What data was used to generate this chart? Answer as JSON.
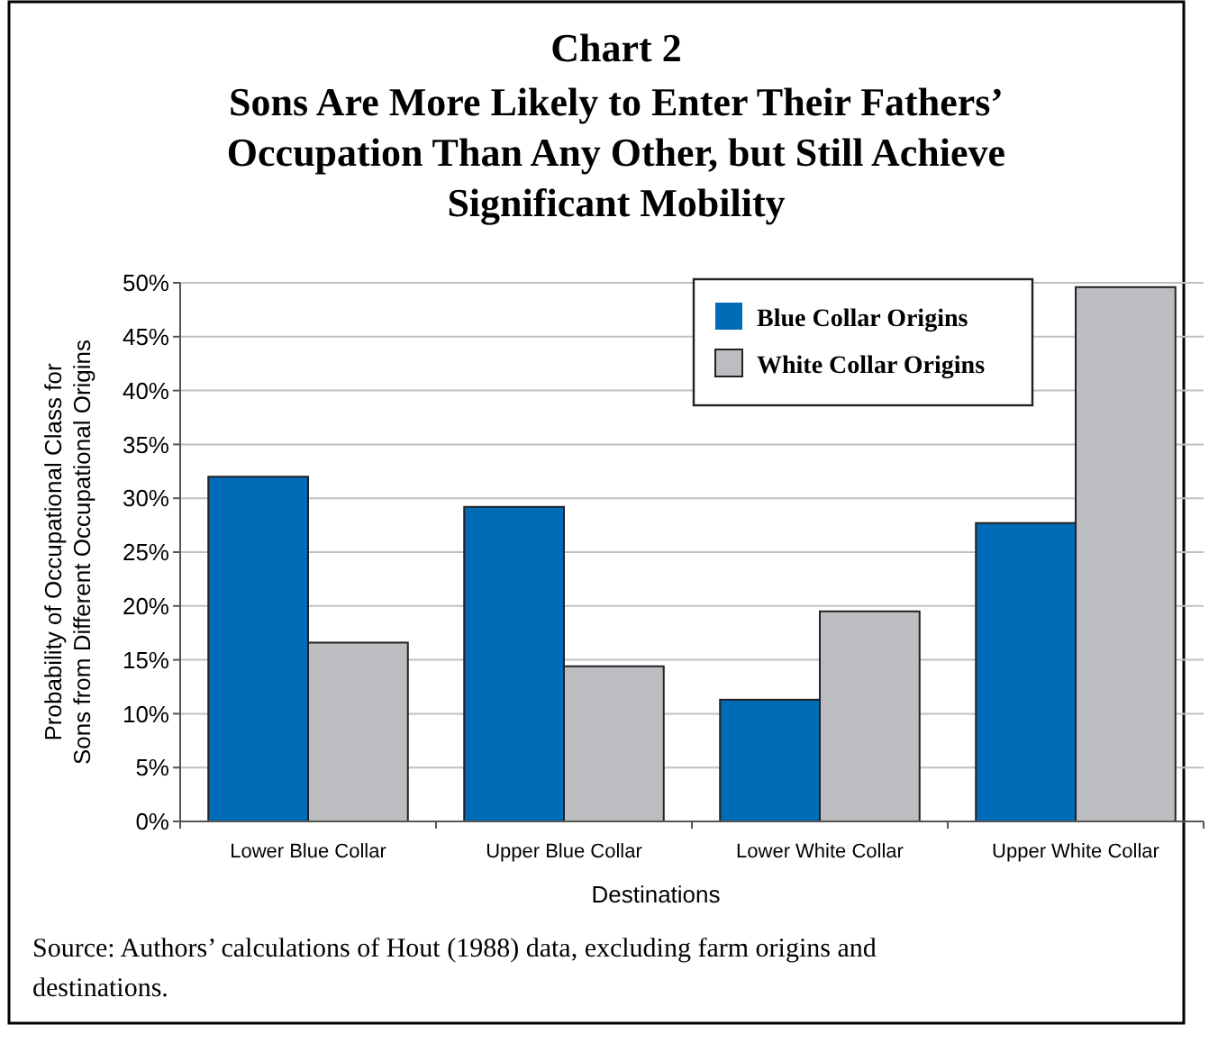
{
  "chart_data": {
    "type": "bar",
    "title": "Chart 2",
    "subtitle": "Sons Are More Likely to Enter Their Fathers’ Occupation Than Any Other, but Still Achieve Significant Mobility",
    "xlabel": "Destinations",
    "ylabel": "Probability of Occupational Class for Sons from Different Occupational Origins",
    "categories": [
      "Lower Blue Collar",
      "Upper Blue Collar",
      "Lower White Collar",
      "Upper White Collar"
    ],
    "series": [
      {
        "name": "Blue Collar Origins",
        "color": "#006bb6",
        "values": [
          32.0,
          29.2,
          11.3,
          27.7
        ]
      },
      {
        "name": "White Collar Origins",
        "color": "#bcbdc1",
        "values": [
          16.6,
          14.4,
          19.5,
          49.6
        ]
      }
    ],
    "ylim": [
      0,
      50
    ],
    "yticks": [
      {
        "value": 0,
        "label": "0%"
      },
      {
        "value": 5,
        "label": "5%"
      },
      {
        "value": 10,
        "label": "10%"
      },
      {
        "value": 15,
        "label": "15%"
      },
      {
        "value": 20,
        "label": "20%"
      },
      {
        "value": 25,
        "label": "25%"
      },
      {
        "value": 30,
        "label": "30%"
      },
      {
        "value": 35,
        "label": "35%"
      },
      {
        "value": 40,
        "label": "40%"
      },
      {
        "value": 45,
        "label": "45%"
      },
      {
        "value": 50,
        "label": "50%"
      }
    ],
    "grid": "y",
    "legend": "top right",
    "annotations": [
      "Source: Authors’ calculations of Hout (1988) data, excluding farm origins and destinations."
    ]
  }
}
